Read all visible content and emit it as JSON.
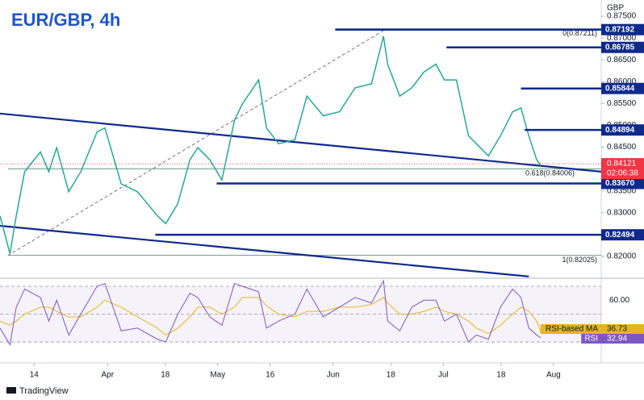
{
  "chart_data": [
    {
      "type": "line",
      "title": "EUR/GBP, 4h",
      "currency": "GBP",
      "color": "#26a69a",
      "x": [
        -6.5,
        -4.6,
        -3.4,
        -1.8,
        1.2,
        2.8,
        4.3,
        6.6,
        8.9,
        12,
        13.5,
        16.6,
        19.7,
        23.5,
        25.1,
        27.4,
        29.7,
        31.2,
        33.5,
        35.8,
        38.2,
        39.7,
        42.8,
        44.3,
        46.6,
        49.7,
        52,
        55.1,
        58.2,
        61.2,
        64.3,
        66.6,
        67.4,
        69.7,
        72,
        74.3,
        76.6,
        78.2,
        80.5,
        82.8,
        84.3,
        86.6,
        88.9,
        91.2,
        92.8,
        94.3,
        95.8,
        96.6
      ],
      "values": [
        0.8293,
        0.8206,
        0.8293,
        0.8394,
        0.8439,
        0.8394,
        0.8449,
        0.8348,
        0.8394,
        0.8485,
        0.8494,
        0.8366,
        0.8348,
        0.8293,
        0.8275,
        0.8321,
        0.8421,
        0.8449,
        0.8421,
        0.8375,
        0.8512,
        0.8549,
        0.8604,
        0.8494,
        0.8458,
        0.8467,
        0.8567,
        0.8522,
        0.8531,
        0.8586,
        0.8595,
        0.8704,
        0.864,
        0.8567,
        0.8586,
        0.8622,
        0.864,
        0.8604,
        0.8604,
        0.8476,
        0.8458,
        0.843,
        0.8476,
        0.8531,
        0.854,
        0.8476,
        0.8421,
        0.8408
      ],
      "xlim": [
        -6.5,
        108.1
      ],
      "xticks": [
        {
          "value": 0,
          "label": "14"
        },
        {
          "value": 14,
          "label": "Apr"
        },
        {
          "value": 25,
          "label": "18"
        },
        {
          "value": 35,
          "label": "May"
        },
        {
          "value": 45,
          "label": "16"
        },
        {
          "value": 57,
          "label": "Jun"
        },
        {
          "value": 68,
          "label": "18"
        },
        {
          "value": 78,
          "label": "Jul"
        },
        {
          "value": 89,
          "label": "18"
        },
        {
          "value": 99,
          "label": "Aug"
        }
      ],
      "ylim": [
        0.815,
        0.8787
      ],
      "yticks": [
        {
          "value": 0.875,
          "label": "0.87500"
        },
        {
          "value": 0.87,
          "label": "0.87000"
        },
        {
          "value": 0.865,
          "label": "0.86500"
        },
        {
          "value": 0.86,
          "label": "0.86000"
        },
        {
          "value": 0.855,
          "label": "0.85500"
        },
        {
          "value": 0.85,
          "label": "0.85000"
        },
        {
          "value": 0.845,
          "label": "0.84500"
        },
        {
          "value": 0.835,
          "label": "0.83500"
        },
        {
          "value": 0.83,
          "label": "0.83000"
        },
        {
          "value": 0.82,
          "label": "0.82000"
        }
      ],
      "levels": [
        {
          "value": 0.87192,
          "label": "0.87192",
          "from": 57.4
        },
        {
          "value": 0.86785,
          "label": "0.86785",
          "from": 78.6
        },
        {
          "value": 0.85844,
          "label": "0.85844",
          "from": 92.8
        },
        {
          "value": 0.84894,
          "label": "0.84894",
          "from": 93.5
        },
        {
          "value": 0.8367,
          "label": "0.83670",
          "from": 34.8
        },
        {
          "value": 0.82494,
          "label": "0.82494",
          "from": 23.1
        }
      ],
      "level_color": "#0f2a8c",
      "fib": [
        {
          "value": 0.87211,
          "label": "0(0.87211)"
        },
        {
          "value": 0.84006,
          "label": "0.618(0.84006)"
        },
        {
          "value": 0.82025,
          "label": "1(0.82025)"
        }
      ],
      "trendlines": [
        {
          "x": [
            -6.5,
            108.1
          ],
          "values": [
            0.8527,
            0.8394
          ],
          "dashed": false
        },
        {
          "x": [
            -6.5,
            94.3
          ],
          "values": [
            0.827,
            0.8154
          ],
          "dashed": false
        },
        {
          "x": [
            -5,
            66.6
          ],
          "values": [
            0.8202,
            0.8717
          ],
          "dashed": true
        }
      ],
      "current_price": {
        "value": 0.84121,
        "countdown": "02:06:38",
        "color": "#f23645"
      }
    },
    {
      "type": "line",
      "series": [
        {
          "name": "RSI-based MA",
          "color": "#e6b422",
          "values": [
            45,
            42,
            45,
            50,
            55,
            55,
            52,
            48,
            48,
            55,
            60,
            55,
            48,
            40,
            35,
            40,
            48,
            55,
            55,
            50,
            55,
            62,
            62,
            56,
            50,
            48,
            52,
            52,
            55,
            55,
            57,
            62,
            58,
            50,
            50,
            52,
            55,
            52,
            50,
            45,
            40,
            36,
            42,
            50,
            55,
            52,
            45,
            36.73
          ]
        },
        {
          "name": "RSI",
          "color": "#7e57c2",
          "values": [
            40,
            28,
            55,
            68,
            62,
            45,
            60,
            35,
            50,
            70,
            72,
            38,
            40,
            32,
            30,
            50,
            65,
            62,
            48,
            42,
            72,
            70,
            66,
            40,
            45,
            50,
            68,
            48,
            55,
            62,
            58,
            74,
            45,
            38,
            55,
            60,
            60,
            45,
            50,
            30,
            35,
            32,
            55,
            68,
            62,
            40,
            35,
            32.94
          ]
        }
      ],
      "ylim": [
        25.4,
        75.8
      ],
      "yticks": [
        {
          "value": 60,
          "label": "60.00"
        }
      ],
      "levels": [
        70,
        50,
        30
      ]
    }
  ],
  "branding": "TradingView"
}
